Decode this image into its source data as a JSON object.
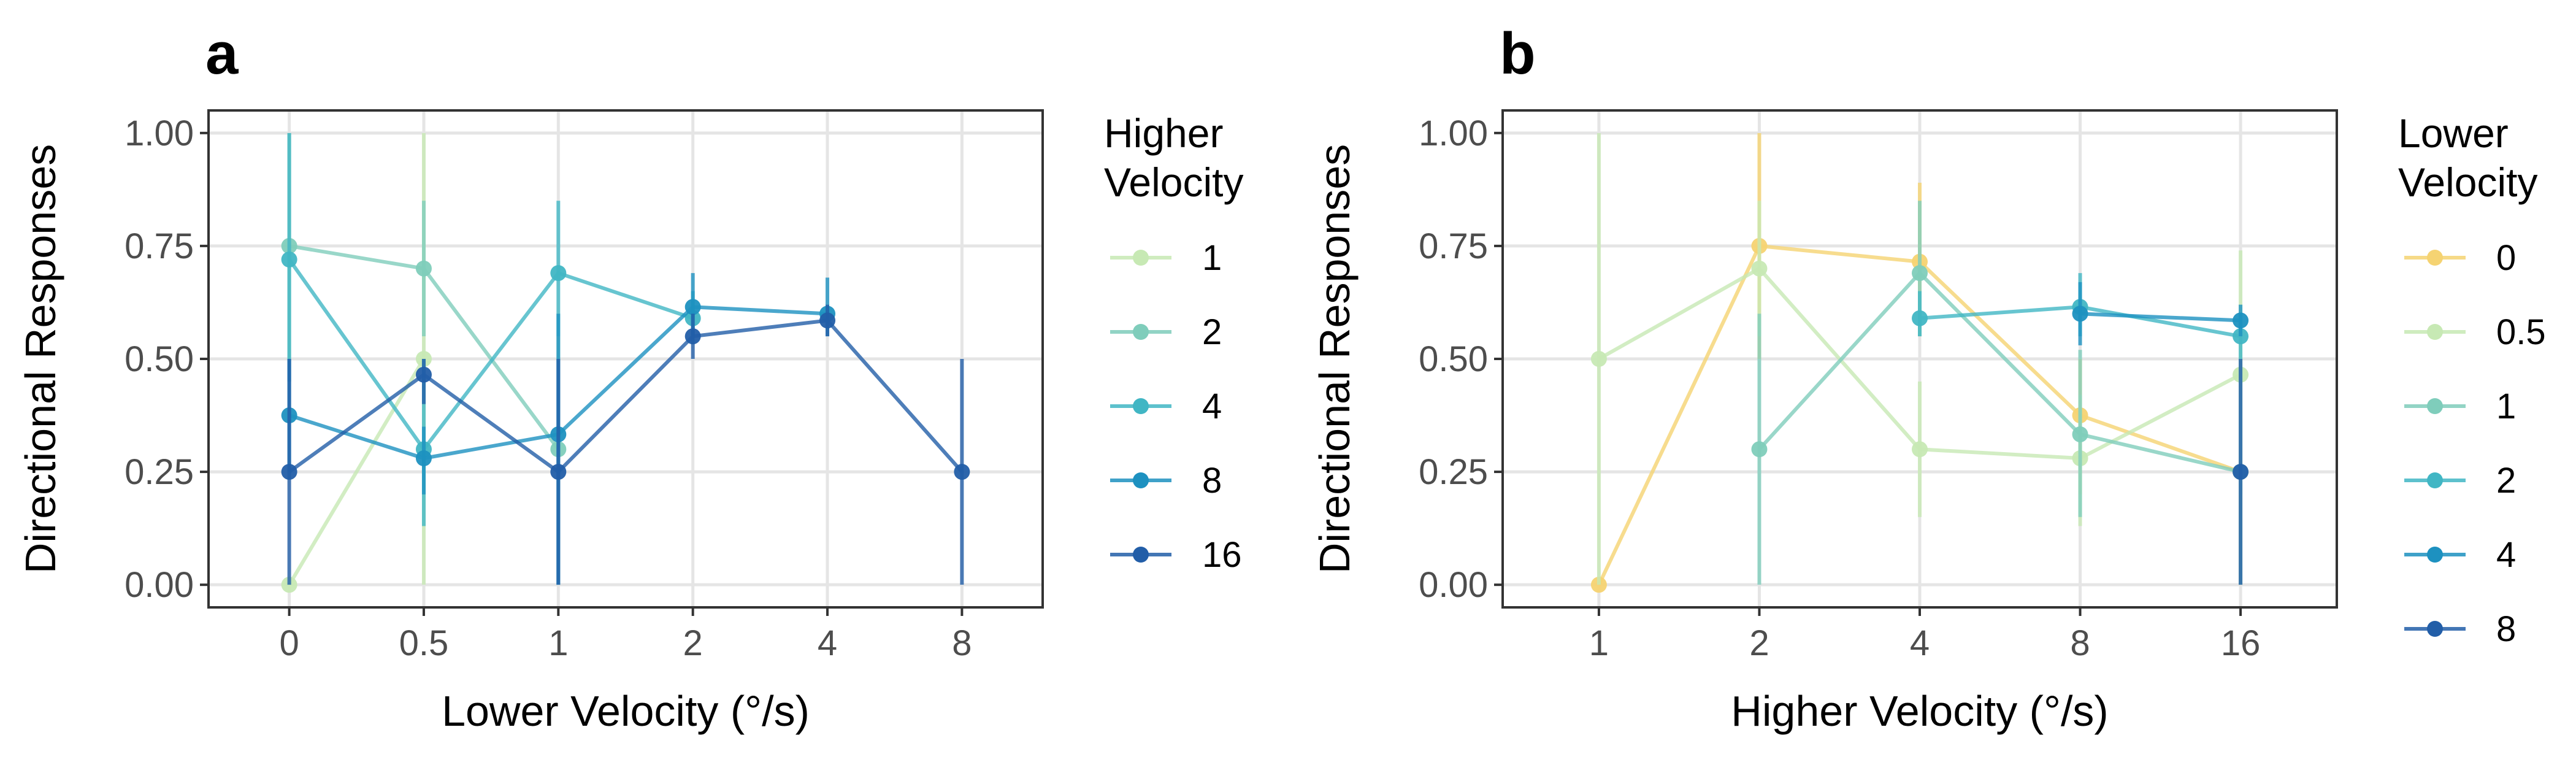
{
  "chart_data": [
    {
      "panel": "a",
      "type": "line",
      "xlabel": "Lower Velocity (°/s)",
      "ylabel": "Directional Responses",
      "categories": [
        "0",
        "0.5",
        "1",
        "2",
        "4",
        "8"
      ],
      "ylim": [
        -0.05,
        1.05
      ],
      "yticks": [
        "0.00",
        "0.25",
        "0.50",
        "0.75",
        "1.00"
      ],
      "grid": true,
      "legend_title": "Higher Velocity",
      "legend_title_lines": [
        "Higher",
        "Velocity"
      ],
      "series": [
        {
          "name": "1",
          "color": "#c7e9b4",
          "points": [
            {
              "x": "0",
              "y": 0.0,
              "lo": 0.0,
              "hi": 0.0
            },
            {
              "x": "0.5",
              "y": 0.5,
              "lo": 0.0,
              "hi": 1.0
            }
          ]
        },
        {
          "name": "2",
          "color": "#7fcdbb",
          "points": [
            {
              "x": "0",
              "y": 0.75,
              "lo": 0.5,
              "hi": 1.0
            },
            {
              "x": "0.5",
              "y": 0.7,
              "lo": 0.55,
              "hi": 0.85
            },
            {
              "x": "1",
              "y": 0.3,
              "lo": 0.0,
              "hi": 0.55
            }
          ]
        },
        {
          "name": "4",
          "color": "#41b6c4",
          "points": [
            {
              "x": "0",
              "y": 0.72,
              "lo": 0.45,
              "hi": 1.0
            },
            {
              "x": "0.5",
              "y": 0.3,
              "lo": 0.13,
              "hi": 0.5
            },
            {
              "x": "1",
              "y": 0.69,
              "lo": 0.55,
              "hi": 0.85
            },
            {
              "x": "2",
              "y": 0.59,
              "lo": 0.55,
              "hi": 0.65
            }
          ]
        },
        {
          "name": "8",
          "color": "#1d91c0",
          "points": [
            {
              "x": "0",
              "y": 0.375,
              "lo": 0.25,
              "hi": 0.5
            },
            {
              "x": "0.5",
              "y": 0.28,
              "lo": 0.2,
              "hi": 0.35
            },
            {
              "x": "1",
              "y": 0.333,
              "lo": 0.0,
              "hi": 0.6
            },
            {
              "x": "2",
              "y": 0.615,
              "lo": 0.55,
              "hi": 0.69
            },
            {
              "x": "4",
              "y": 0.6,
              "lo": 0.55,
              "hi": 0.68
            }
          ]
        },
        {
          "name": "16",
          "color": "#225ea8",
          "points": [
            {
              "x": "0",
              "y": 0.25,
              "lo": 0.0,
              "hi": 0.5
            },
            {
              "x": "0.5",
              "y": 0.465,
              "lo": 0.4,
              "hi": 0.5
            },
            {
              "x": "1",
              "y": 0.25,
              "lo": 0.0,
              "hi": 0.5
            },
            {
              "x": "2",
              "y": 0.55,
              "lo": 0.5,
              "hi": 0.6
            },
            {
              "x": "4",
              "y": 0.585,
              "lo": 0.55,
              "hi": 0.62
            },
            {
              "x": "8",
              "y": 0.25,
              "lo": 0.0,
              "hi": 0.5
            }
          ]
        }
      ]
    },
    {
      "panel": "b",
      "type": "line",
      "xlabel": "Higher Velocity (°/s)",
      "ylabel": "Directional Responses",
      "categories": [
        "1",
        "2",
        "4",
        "8",
        "16"
      ],
      "ylim": [
        -0.05,
        1.05
      ],
      "yticks": [
        "0.00",
        "0.25",
        "0.50",
        "0.75",
        "1.00"
      ],
      "grid": true,
      "legend_title": "Lower Velocity",
      "legend_title_lines": [
        "Lower",
        "Velocity"
      ],
      "series": [
        {
          "name": "0",
          "color": "#f5d372",
          "points": [
            {
              "x": "1",
              "y": 0.0,
              "lo": 0.0,
              "hi": 0.0
            },
            {
              "x": "2",
              "y": 0.75,
              "lo": 0.5,
              "hi": 1.0
            },
            {
              "x": "4",
              "y": 0.715,
              "lo": 0.55,
              "hi": 0.89
            },
            {
              "x": "8",
              "y": 0.375,
              "lo": 0.2,
              "hi": 0.5
            },
            {
              "x": "16",
              "y": 0.25,
              "lo": 0.0,
              "hi": 0.5
            }
          ]
        },
        {
          "name": "0.5",
          "color": "#c7e9b4",
          "points": [
            {
              "x": "1",
              "y": 0.5,
              "lo": 0.0,
              "hi": 1.0
            },
            {
              "x": "2",
              "y": 0.7,
              "lo": 0.55,
              "hi": 0.85
            },
            {
              "x": "4",
              "y": 0.3,
              "lo": 0.15,
              "hi": 0.45
            },
            {
              "x": "8",
              "y": 0.28,
              "lo": 0.13,
              "hi": 0.42
            },
            {
              "x": "16",
              "y": 0.465,
              "lo": 0.2,
              "hi": 0.74
            }
          ]
        },
        {
          "name": "1",
          "color": "#7fcdbb",
          "points": [
            {
              "x": "2",
              "y": 0.3,
              "lo": 0.0,
              "hi": 0.6
            },
            {
              "x": "4",
              "y": 0.69,
              "lo": 0.55,
              "hi": 0.85
            },
            {
              "x": "8",
              "y": 0.333,
              "lo": 0.15,
              "hi": 0.52
            },
            {
              "x": "16",
              "y": 0.25,
              "lo": 0.0,
              "hi": 0.5
            }
          ]
        },
        {
          "name": "2",
          "color": "#41b6c4",
          "points": [
            {
              "x": "4",
              "y": 0.59,
              "lo": 0.55,
              "hi": 0.65
            },
            {
              "x": "8",
              "y": 0.615,
              "lo": 0.55,
              "hi": 0.69
            },
            {
              "x": "16",
              "y": 0.55,
              "lo": 0.5,
              "hi": 0.6
            }
          ]
        },
        {
          "name": "4",
          "color": "#1d91c0",
          "points": [
            {
              "x": "8",
              "y": 0.6,
              "lo": 0.53,
              "hi": 0.67
            },
            {
              "x": "16",
              "y": 0.585,
              "lo": 0.55,
              "hi": 0.62
            }
          ]
        },
        {
          "name": "8",
          "color": "#225ea8",
          "points": [
            {
              "x": "16",
              "y": 0.25,
              "lo": 0.0,
              "hi": 0.5
            }
          ]
        }
      ]
    }
  ]
}
